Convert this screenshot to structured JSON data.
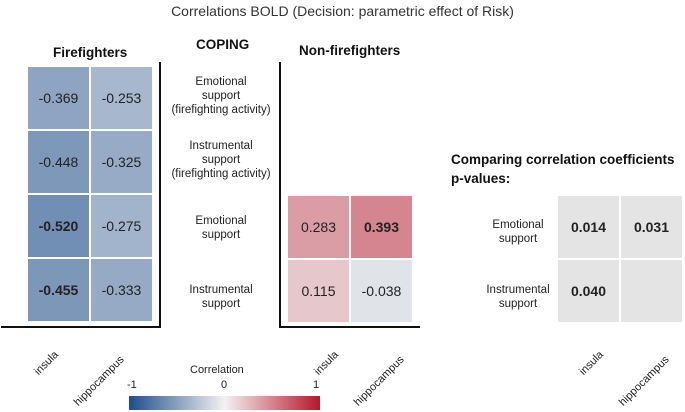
{
  "title": "Correlations BOLD (Decision: parametric effect of Risk)",
  "coping_header": "COPING",
  "coping_labels": [
    "Emotional\nsupport\n(firefighting activity)",
    "Instrumental\nsupport\n(firefighting activity)",
    "Emotional\nsupport",
    "Instrumental\nsupport"
  ],
  "chart_data": [
    {
      "type": "heatmap",
      "title": "Firefighters",
      "x_categories": [
        "insula",
        "hippocampus"
      ],
      "y_categories": [
        "Emotional support (firefighting activity)",
        "Instrumental support (firefighting activity)",
        "Emotional support",
        "Instrumental support"
      ],
      "values": [
        [
          -0.369,
          -0.253
        ],
        [
          -0.448,
          -0.325
        ],
        [
          -0.52,
          -0.275
        ],
        [
          -0.455,
          -0.333
        ]
      ],
      "labels": [
        [
          "-0.369",
          "-0.253"
        ],
        [
          "-0.448",
          "-0.325"
        ],
        [
          "-0.520",
          "-0.275"
        ],
        [
          "-0.455",
          "-0.333"
        ]
      ],
      "bold": [
        [
          false,
          false
        ],
        [
          false,
          false
        ],
        [
          true,
          false
        ],
        [
          true,
          false
        ]
      ]
    },
    {
      "type": "heatmap",
      "title": "Non-firefighters",
      "x_categories": [
        "insula",
        "hippocampus"
      ],
      "y_categories": [
        "Emotional support",
        "Instrumental support"
      ],
      "values": [
        [
          0.283,
          0.393
        ],
        [
          0.115,
          -0.038
        ]
      ],
      "labels": [
        [
          "0.283",
          "0.393"
        ],
        [
          "0.115",
          "-0.038"
        ]
      ],
      "bold": [
        [
          false,
          true
        ],
        [
          false,
          false
        ]
      ]
    },
    {
      "type": "table",
      "title": "Comparing correlation coefficients\np-values:",
      "x_categories": [
        "insula",
        "hippocampus"
      ],
      "y_categories": [
        "Emotional\nsupport",
        "Instrumental\nsupport"
      ],
      "cells": [
        [
          "0.014",
          "0.031"
        ],
        [
          "0.040",
          ""
        ]
      ]
    }
  ],
  "colorbar": {
    "title": "Correlation",
    "min_label": "-1",
    "mid_label": "0",
    "max_label": "1",
    "range": [
      -1,
      1
    ],
    "colors": {
      "negative": "#1f4e8c",
      "zero": "#f2f2f2",
      "positive": "#b5172b"
    }
  },
  "pvalue_cell_color": "#e4e4e4"
}
